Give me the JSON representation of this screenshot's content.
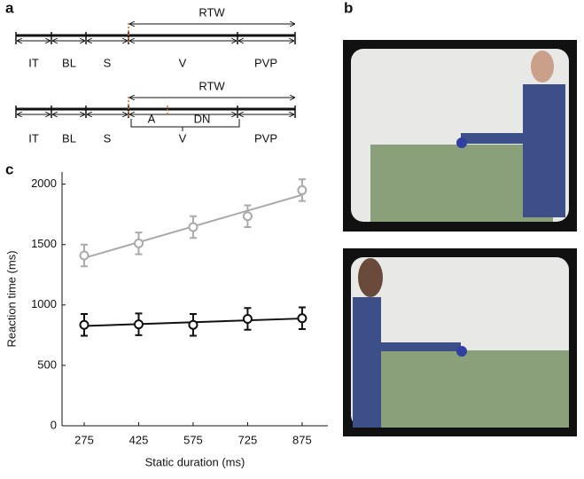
{
  "panels": {
    "a": "a",
    "b": "b",
    "c": "c"
  },
  "timelines": [
    {
      "labels": [
        "IT",
        "BL",
        "S",
        "V",
        "PVP"
      ],
      "window": "RTW"
    },
    {
      "labels": [
        "IT",
        "BL",
        "S",
        "V",
        "PVP"
      ],
      "window": "RTW",
      "sub_labels": [
        "A",
        "DN"
      ]
    }
  ],
  "chart_data": {
    "type": "line",
    "x": [
      275,
      425,
      575,
      725,
      875
    ],
    "series": [
      {
        "color": "#aaaaaa",
        "values": [
          1410,
          1510,
          1645,
          1735,
          1950
        ],
        "errors": [
          90,
          90,
          90,
          90,
          90
        ]
      },
      {
        "color": "#111111",
        "values": [
          835,
          840,
          835,
          885,
          890
        ],
        "errors": [
          90,
          90,
          90,
          90,
          90
        ]
      }
    ],
    "xlabel": "Static duration (ms)",
    "ylabel": "Reaction time (ms)",
    "xlim": [
      214,
      946
    ],
    "ylim": [
      0,
      2100
    ],
    "xticks": [
      275,
      425,
      575,
      725,
      875
    ],
    "yticks": [
      0,
      500,
      1000,
      1500,
      2000
    ],
    "trend_line": true
  }
}
